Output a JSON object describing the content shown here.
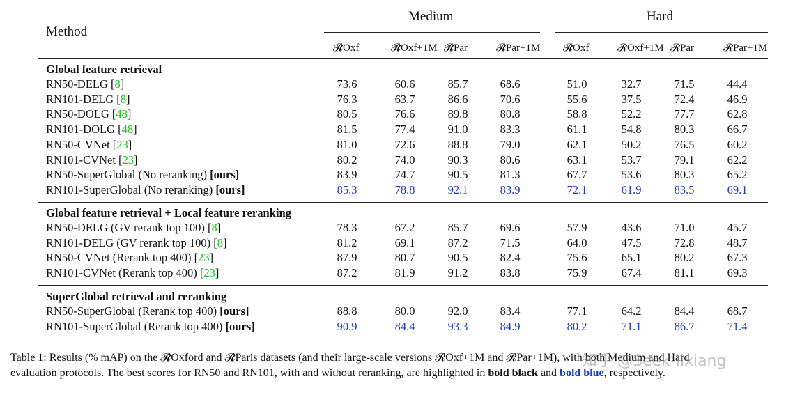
{
  "header": {
    "method_label": "Method",
    "medium_label": "Medium",
    "hard_label": "Hard",
    "columns": [
      "𝓡Oxf",
      "𝓡Oxf+1M",
      "𝓡Par",
      "𝓡Par+1M",
      "𝓡Oxf",
      "𝓡Oxf+1M",
      "𝓡Par",
      "𝓡Par+1M"
    ]
  },
  "sections": [
    {
      "title": "Global feature retrieval",
      "rows": [
        {
          "name": "RN50-DELG [",
          "ref": "8",
          "suffix": "]",
          "ours": "",
          "values": [
            "73.6",
            "60.6",
            "85.7",
            "68.6",
            "51.0",
            "32.7",
            "71.5",
            "44.4"
          ],
          "blue": false
        },
        {
          "name": "RN101-DELG [",
          "ref": "8",
          "suffix": "]",
          "ours": "",
          "values": [
            "76.3",
            "63.7",
            "86.6",
            "70.6",
            "55.6",
            "37.5",
            "72.4",
            "46.9"
          ],
          "blue": false
        },
        {
          "name": "RN50-DOLG [",
          "ref": "48",
          "suffix": "]",
          "ours": "",
          "values": [
            "80.5",
            "76.6",
            "89.8",
            "80.8",
            "58.8",
            "52.2",
            "77.7",
            "62.8"
          ],
          "blue": false
        },
        {
          "name": "RN101-DOLG [",
          "ref": "48",
          "suffix": "]",
          "ours": "",
          "values": [
            "81.5",
            "77.4",
            "91.0",
            "83.3",
            "61.1",
            "54.8",
            "80.3",
            "66.7"
          ],
          "blue": false
        },
        {
          "name": "RN50-CVNet [",
          "ref": "23",
          "suffix": "]",
          "ours": "",
          "values": [
            "81.0",
            "72.6",
            "88.8",
            "79.0",
            "62.1",
            "50.2",
            "76.5",
            "60.2"
          ],
          "blue": false
        },
        {
          "name": "RN101-CVNet [",
          "ref": "23",
          "suffix": "]",
          "ours": "",
          "values": [
            "80.2",
            "74.0",
            "90.3",
            "80.6",
            "63.1",
            "53.7",
            "79.1",
            "62.2"
          ],
          "blue": false
        },
        {
          "name": "RN50-SuperGlobal (No reranking) ",
          "ref": "",
          "suffix": "",
          "ours": "[ours]",
          "values": [
            "83.9",
            "74.7",
            "90.5",
            "81.3",
            "67.7",
            "53.6",
            "80.3",
            "65.2"
          ],
          "blue": false
        },
        {
          "name": "RN101-SuperGlobal (No reranking) ",
          "ref": "",
          "suffix": "",
          "ours": "[ours]",
          "values": [
            "85.3",
            "78.8",
            "92.1",
            "83.9",
            "72.1",
            "61.9",
            "83.5",
            "69.1"
          ],
          "blue": true
        }
      ]
    },
    {
      "title": "Global feature retrieval + Local feature reranking",
      "rows": [
        {
          "name": "RN50-DELG (GV rerank top 100) [",
          "ref": "8",
          "suffix": "]",
          "ours": "",
          "values": [
            "78.3",
            "67.2",
            "85.7",
            "69.6",
            "57.9",
            "43.6",
            "71.0",
            "45.7"
          ],
          "blue": false
        },
        {
          "name": "RN101-DELG (GV rerank top 100) [",
          "ref": "8",
          "suffix": "]",
          "ours": "",
          "values": [
            "81.2",
            "69.1",
            "87.2",
            "71.5",
            "64.0",
            "47.5",
            "72.8",
            "48.7"
          ],
          "blue": false
        },
        {
          "name": "RN50-CVNet (Rerank top 400) [",
          "ref": "23",
          "suffix": "]",
          "ours": "",
          "values": [
            "87.9",
            "80.7",
            "90.5",
            "82.4",
            "75.6",
            "65.1",
            "80.2",
            "67.3"
          ],
          "blue": false
        },
        {
          "name": "RN101-CVNet (Rerank top 400) [",
          "ref": "23",
          "suffix": "]",
          "ours": "",
          "values": [
            "87.2",
            "81.9",
            "91.2",
            "83.8",
            "75.9",
            "67.4",
            "81.1",
            "69.3"
          ],
          "blue": false
        }
      ]
    },
    {
      "title": "SuperGlobal retrieval and reranking",
      "rows": [
        {
          "name": "RN50-SuperGlobal (Rerank top 400) ",
          "ref": "",
          "suffix": "",
          "ours": "[ours]",
          "values": [
            "88.8",
            "80.0",
            "92.0",
            "83.4",
            "77.1",
            "64.2",
            "84.4",
            "68.7"
          ],
          "blue": false
        },
        {
          "name": "RN101-SuperGlobal (Rerank top 400) ",
          "ref": "",
          "suffix": "",
          "ours": "[ours]",
          "values": [
            "90.9",
            "84.4",
            "93.3",
            "84.9",
            "80.2",
            "71.1",
            "86.7",
            "71.4"
          ],
          "blue": true
        }
      ]
    }
  ],
  "caption": {
    "part1": "Table 1: Results (% mAP) on the 𝓡Oxford and 𝓡Paris datasets (and their large-scale versions 𝓡Oxf+1M and 𝓡Par+1M), with both Medium and Hard",
    "part2": "evaluation protocols. The best scores for RN50 and RN101, with and without reranking, are highlighted in ",
    "bold_black": "bold black",
    "and": " and ",
    "bold_blue": "bold blue",
    "end": ", respectively."
  },
  "watermark": "知乎 @Seek-lixiang",
  "colors": {
    "blue": "#1f3fb5",
    "green": "#16c216"
  }
}
